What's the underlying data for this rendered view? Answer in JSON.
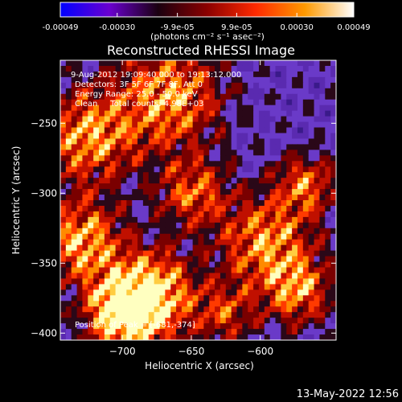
{
  "colorbar": {
    "tick_labels": [
      "-0.00049",
      "-0.00030",
      "-9.9e-05",
      "9.9e-05",
      "0.00030",
      "0.00049"
    ],
    "tick_values": [
      -0.00049,
      -0.0003,
      -9.9e-05,
      9.9e-05,
      0.0003,
      0.00049
    ],
    "range": [
      -0.00049,
      0.00049
    ],
    "units_label": "(photons cm⁻² s⁻¹ asec⁻²)",
    "stops": [
      "#0000ff",
      "#6a00d0",
      "#1a0010",
      "#8b0000",
      "#ff2a00",
      "#ff9a00",
      "#ffffff"
    ]
  },
  "chart_data": {
    "type": "heatmap",
    "title": "Reconstructed RHESSI Image",
    "xlabel": "Heliocentric X (arcsec)",
    "ylabel": "Heliocentric Y (arcsec)",
    "xlim": [
      -745,
      -545
    ],
    "ylim": [
      -405,
      -205
    ],
    "x_ticks": [
      -700,
      -650,
      -600
    ],
    "y_ticks": [
      -400,
      -350,
      -300,
      -250
    ],
    "x_tick_labels": [
      "−700",
      "−650",
      "−600"
    ],
    "y_tick_labels": [
      "−400",
      "−350",
      "−300",
      "−250"
    ],
    "annotations": [
      "9-Aug-2012 19:09:40.000 to 19:13:12.000",
      "Detectors: 3F 5F 6F 7F 8F, Att 0",
      "Energy Range: 25.0 - 50.0 keV",
      "Clean     Total counts: 4.98E+03"
    ],
    "peak_label": "Position of Peak = [-681,-374]",
    "peak": [
      -681,
      -374
    ]
  },
  "timestamp": "13-May-2022 12:56"
}
